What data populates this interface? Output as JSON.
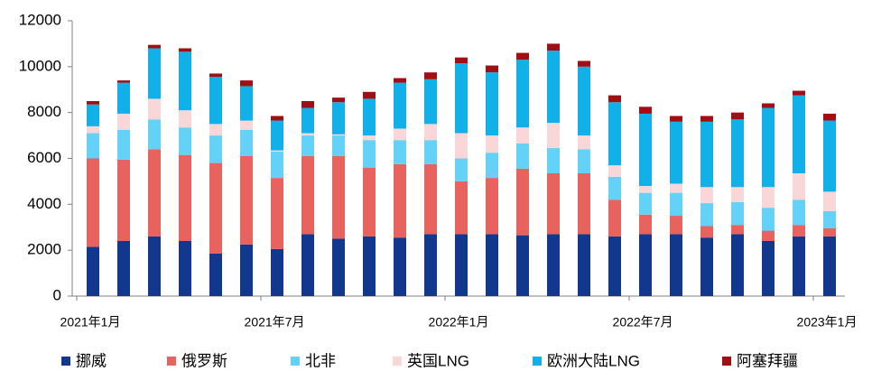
{
  "chart_data": {
    "type": "stacked_bar",
    "categories": [
      "2021年1月",
      null,
      null,
      null,
      null,
      null,
      "2021年7月",
      null,
      null,
      null,
      null,
      null,
      "2022年1月",
      null,
      null,
      null,
      null,
      null,
      "2022年7月",
      null,
      null,
      null,
      null,
      null,
      "2023年1月"
    ],
    "ylim": [
      0,
      12000
    ],
    "yticks": [
      0,
      2000,
      4000,
      6000,
      8000,
      10000,
      12000
    ],
    "legend": "bottom",
    "series": [
      {
        "name": "挪威",
        "color": "#12388e",
        "values": [
          2150,
          2400,
          2600,
          2400,
          1850,
          2250,
          2050,
          2700,
          2500,
          2600,
          2550,
          2700,
          2700,
          2700,
          2650,
          2700,
          2700,
          2600,
          2700,
          2700,
          2550,
          2700,
          2400,
          2600,
          2600
        ]
      },
      {
        "name": "俄罗斯",
        "color": "#e8625e",
        "values": [
          3850,
          3550,
          3800,
          3750,
          3950,
          3850,
          3100,
          3400,
          3600,
          3000,
          3200,
          3050,
          2300,
          2450,
          2900,
          2650,
          2650,
          1600,
          850,
          800,
          500,
          400,
          450,
          500,
          350
        ]
      },
      {
        "name": "北非",
        "color": "#63d2f6",
        "values": [
          1100,
          1300,
          1300,
          1200,
          1200,
          1150,
          1150,
          900,
          900,
          1200,
          1050,
          1050,
          1000,
          1100,
          1100,
          1100,
          1050,
          1000,
          950,
          1000,
          1000,
          1000,
          1000,
          1100,
          750
        ]
      },
      {
        "name": "英国LNG",
        "color": "#f9d6d7",
        "values": [
          300,
          700,
          900,
          750,
          500,
          400,
          50,
          100,
          50,
          200,
          500,
          700,
          1100,
          750,
          700,
          1100,
          600,
          500,
          300,
          400,
          700,
          650,
          900,
          1150,
          850
        ]
      },
      {
        "name": "欧洲大陆LNG",
        "color": "#12b0e8",
        "values": [
          950,
          1350,
          2200,
          2550,
          2050,
          1500,
          1300,
          1100,
          1400,
          1600,
          2000,
          1950,
          3050,
          2750,
          2950,
          3150,
          3000,
          2750,
          3150,
          2700,
          2850,
          2950,
          3450,
          3400,
          3100
        ]
      },
      {
        "name": "阿塞拜疆",
        "color": "#a00f14",
        "values": [
          150,
          100,
          150,
          150,
          150,
          250,
          200,
          300,
          200,
          300,
          200,
          300,
          250,
          300,
          300,
          300,
          250,
          300,
          300,
          250,
          250,
          300,
          200,
          200,
          300
        ]
      }
    ]
  }
}
